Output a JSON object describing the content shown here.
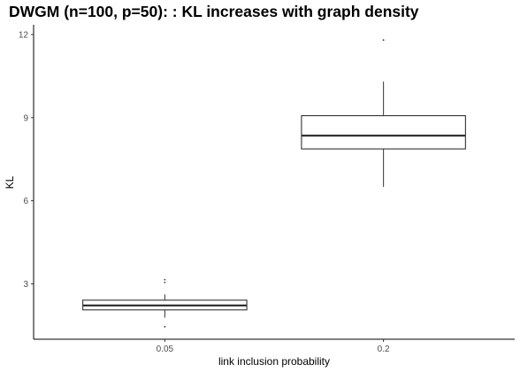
{
  "chart_data": {
    "type": "box",
    "title": "DWGM (n=100, p=50): : KL increases with graph density",
    "xlabel": "link inclusion probability",
    "ylabel": "KL",
    "categories": [
      "0.05",
      "0.2"
    ],
    "y_ticks": [
      3,
      6,
      9,
      12
    ],
    "ylim": [
      1.0,
      12.35
    ],
    "grid": false,
    "boxes": [
      {
        "category": "0.05",
        "whisker_low": 1.78,
        "q1": 2.06,
        "median": 2.22,
        "q3": 2.41,
        "whisker_high": 2.62,
        "outliers": [
          1.45,
          3.05,
          3.15
        ]
      },
      {
        "category": "0.2",
        "whisker_low": 6.5,
        "q1": 7.87,
        "median": 8.35,
        "q3": 9.07,
        "whisker_high": 10.3,
        "outliers": [
          11.8
        ]
      }
    ],
    "colors": {
      "box_fill": "#ffffff",
      "box_stroke": "#333333",
      "axis": "#000000"
    }
  }
}
